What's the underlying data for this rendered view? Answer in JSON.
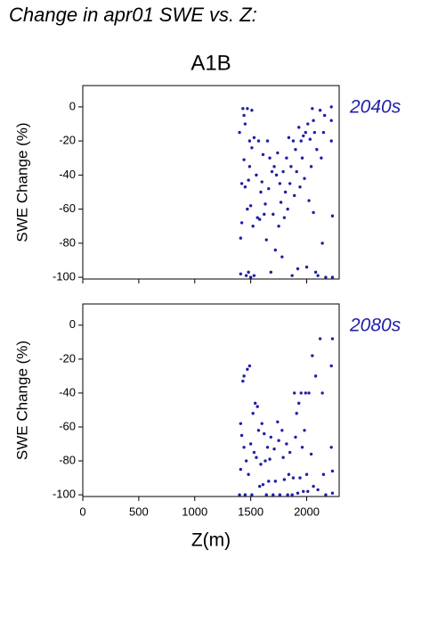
{
  "header": {
    "title": "Change in apr01 SWE vs. Z:",
    "subtitle": "A1B"
  },
  "chart_data": [
    {
      "type": "scatter",
      "ylabel": "SWE Change (%)",
      "xlim": [
        0,
        2290
      ],
      "xticks": [
        0,
        500,
        1000,
        1500,
        2000
      ],
      "ylim": [
        -101,
        12.5
      ],
      "yticks": [
        0,
        -20,
        -40,
        -60,
        -80,
        -100
      ],
      "series": [
        {
          "name": "2040s",
          "color": "#1f1fa8",
          "x": [
            1400,
            1410,
            1410,
            1420,
            1420,
            1430,
            1440,
            1440,
            1450,
            1450,
            1460,
            1470,
            1470,
            1480,
            1480,
            1490,
            1490,
            1500,
            1500,
            1510,
            1510,
            1520,
            1530,
            1530,
            1550,
            1560,
            1570,
            1580,
            1590,
            1600,
            1610,
            1620,
            1630,
            1640,
            1650,
            1660,
            1670,
            1680,
            1690,
            1700,
            1710,
            1720,
            1730,
            1740,
            1750,
            1760,
            1770,
            1780,
            1790,
            1800,
            1810,
            1820,
            1830,
            1840,
            1850,
            1860,
            1870,
            1880,
            1890,
            1900,
            1910,
            1920,
            1930,
            1940,
            1950,
            1960,
            1970,
            1980,
            1990,
            2000,
            2010,
            2020,
            2030,
            2040,
            2050,
            2060,
            2060,
            2070,
            2080,
            2090,
            2100,
            2120,
            2130,
            2140,
            2150,
            2160,
            2170,
            2220,
            2220,
            2220,
            2230,
            2230
          ],
          "values": [
            -15,
            -77,
            -98,
            -45,
            -68,
            -1,
            -5,
            -31,
            -10,
            -47,
            -99,
            -60,
            -1,
            -43,
            -97,
            -20,
            -35,
            -58,
            -100,
            -24,
            -2,
            -70,
            -18,
            -99,
            -40,
            -65,
            -20,
            -66,
            -50,
            -44,
            -28,
            -63,
            -57,
            -78,
            -20,
            -48,
            -30,
            -97,
            -38,
            -63,
            -35,
            -84,
            -40,
            -27,
            -70,
            -45,
            -56,
            -88,
            -38,
            -65,
            -50,
            -30,
            -60,
            -18,
            -45,
            -35,
            -99,
            -20,
            -52,
            -25,
            -38,
            -95,
            -12,
            -47,
            -20,
            -30,
            -17,
            -42,
            -15,
            -94,
            -10,
            -55,
            -19,
            -35,
            -1,
            -8,
            -62,
            -15,
            -97,
            -25,
            -99,
            -2,
            -30,
            -80,
            -15,
            -5,
            -100,
            0,
            -8,
            -20,
            -64,
            -100
          ]
        }
      ]
    },
    {
      "type": "scatter",
      "ylabel": "SWE Change (%)",
      "xlabel": "Z(m)",
      "xlim": [
        0,
        2290
      ],
      "xticks": [
        0,
        500,
        1000,
        1500,
        2000
      ],
      "ylim": [
        -101,
        12.5
      ],
      "yticks": [
        0,
        -20,
        -40,
        -60,
        -80,
        -100
      ],
      "series": [
        {
          "name": "2080s",
          "color": "#1f1fa8",
          "x": [
            1400,
            1410,
            1410,
            1420,
            1430,
            1440,
            1440,
            1450,
            1460,
            1470,
            1480,
            1490,
            1500,
            1510,
            1520,
            1530,
            1540,
            1550,
            1560,
            1570,
            1580,
            1590,
            1600,
            1610,
            1620,
            1630,
            1640,
            1650,
            1660,
            1670,
            1680,
            1700,
            1710,
            1720,
            1740,
            1750,
            1760,
            1780,
            1790,
            1800,
            1820,
            1830,
            1840,
            1850,
            1870,
            1880,
            1890,
            1900,
            1910,
            1920,
            1930,
            1940,
            1950,
            1960,
            1970,
            1980,
            1990,
            2000,
            2010,
            2020,
            2040,
            2050,
            2060,
            2080,
            2100,
            2120,
            2140,
            2150,
            2170,
            2220,
            2220,
            2230,
            2230,
            2230
          ],
          "values": [
            -100,
            -85,
            -58,
            -65,
            -33,
            -30,
            -72,
            -100,
            -80,
            -26,
            -88,
            -24,
            -70,
            -100,
            -52,
            -75,
            -46,
            -78,
            -48,
            -62,
            -95,
            -82,
            -58,
            -94,
            -64,
            -80,
            -100,
            -72,
            -92,
            -79,
            -66,
            -100,
            -73,
            -92,
            -57,
            -68,
            -100,
            -62,
            -78,
            -91,
            -70,
            -100,
            -88,
            -75,
            -100,
            -90,
            -40,
            -66,
            -52,
            -99,
            -46,
            -90,
            -40,
            -72,
            -98,
            -62,
            -40,
            -88,
            -98,
            -40,
            -76,
            -18,
            -95,
            -30,
            -97,
            -8,
            -40,
            -88,
            -100,
            -24,
            -72,
            -86,
            -99,
            -8
          ]
        }
      ]
    }
  ]
}
